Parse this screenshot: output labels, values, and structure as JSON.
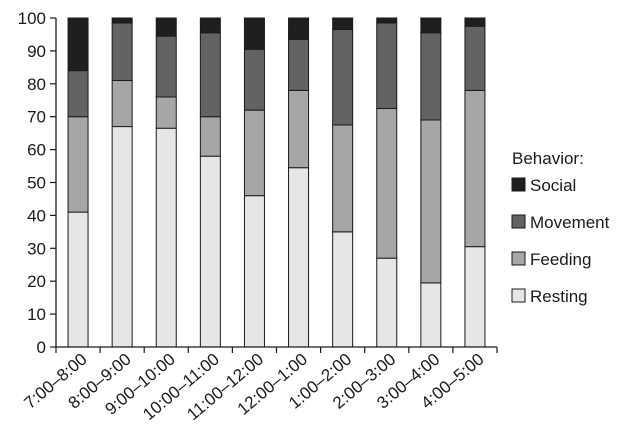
{
  "chart_data": {
    "type": "bar",
    "stacked": true,
    "categories": [
      "7:00–8:00",
      "8:00–9:00",
      "9:00–10:00",
      "10:00–11:00",
      "11:00–12:00",
      "12:00–1:00",
      "1:00–2:00",
      "2:00–3:00",
      "3:00–4:00",
      "4:00–5:00"
    ],
    "series": [
      {
        "name": "Resting",
        "color": "#e6e6e6",
        "values": [
          41,
          67,
          66.5,
          58,
          46,
          54.5,
          35,
          27,
          19.5,
          30.5
        ]
      },
      {
        "name": "Feeding",
        "color": "#a6a6a6",
        "values": [
          29,
          14,
          9.5,
          12,
          26,
          23.5,
          32.5,
          45.5,
          49.5,
          47.5
        ]
      },
      {
        "name": "Movement",
        "color": "#636363",
        "values": [
          14,
          17.5,
          18.5,
          25.5,
          18.5,
          15.5,
          29,
          26,
          26.5,
          19.5
        ]
      },
      {
        "name": "Social",
        "color": "#1f1f1f",
        "values": [
          16,
          1.5,
          5.5,
          4.5,
          9.5,
          6.5,
          3.5,
          1.5,
          4.5,
          2.5
        ]
      }
    ],
    "ylim": [
      0,
      100
    ],
    "yticks": [
      0,
      10,
      20,
      30,
      40,
      50,
      60,
      70,
      80,
      90,
      100
    ],
    "grid": false,
    "legend": {
      "title": "Behavior:",
      "placement": "right",
      "order": [
        "Social",
        "Movement",
        "Feeding",
        "Resting"
      ]
    }
  }
}
